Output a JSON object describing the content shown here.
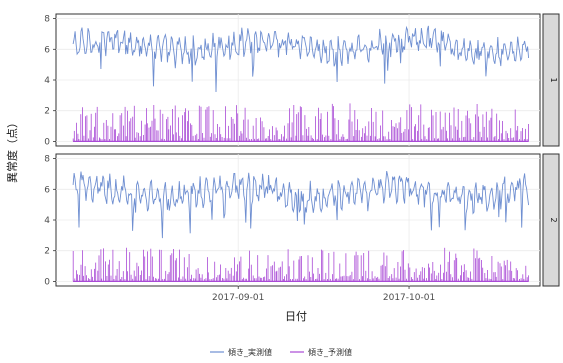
{
  "chart_data": {
    "type": "line",
    "ylabel": "異常度（点）",
    "xlabel": "日付",
    "x_tick_labels": [
      "2017-09-01",
      "2017-10-01"
    ],
    "x_range": [
      "2017-07-31",
      "2017-10-24"
    ],
    "y_ticks": [
      0,
      2,
      4,
      6,
      8
    ],
    "ylim": [
      -0.3,
      8.3
    ],
    "grid": true,
    "legend_position": "bottom",
    "legend": [
      {
        "name": "傾き_実測値",
        "color": "#6f8fd1",
        "style": "line"
      },
      {
        "name": "傾き_予測値",
        "color": "#a94ad6",
        "style": "line"
      }
    ],
    "panels": [
      {
        "strip_label": "1",
        "series": [
          {
            "name": "傾き_実測値",
            "color": "#6f8fd1",
            "type": "line",
            "baseline": 6.2,
            "amplitude": 0.9,
            "noise": 0.6
          },
          {
            "name": "傾き_予測値",
            "color": "#a94ad6",
            "type": "spikes",
            "max": 2.3
          }
        ]
      },
      {
        "strip_label": "2",
        "series": [
          {
            "name": "傾き_実測値",
            "color": "#6f8fd1",
            "type": "line",
            "baseline": 5.8,
            "amplitude": 0.9,
            "noise": 0.6
          },
          {
            "name": "傾き_予測値",
            "color": "#a94ad6",
            "type": "spikes",
            "max": 2.0
          }
        ]
      }
    ]
  }
}
